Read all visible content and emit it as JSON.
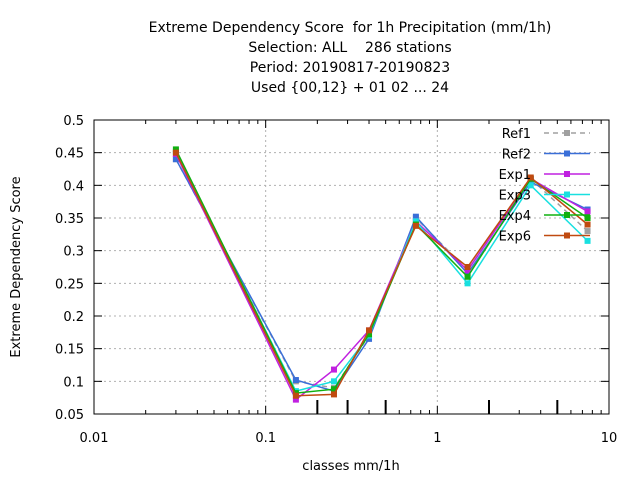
{
  "chart_data": {
    "type": "line",
    "title_lines": [
      "Extreme Dependency Score  for 1h Precipitation (mm/1h)",
      "Selection: ALL    286 stations",
      "Period: 20190817-20190823",
      "Used {00,12} + 01 02 ... 24"
    ],
    "xlabel": "classes mm/1h",
    "ylabel": "Extreme Dependency Score",
    "xscale": "log",
    "xlim": [
      0.01,
      10
    ],
    "ylim": [
      0.05,
      0.5
    ],
    "xticks": [
      0.01,
      0.1,
      1,
      10
    ],
    "xtick_labels": [
      "0.01",
      "0.1",
      "1",
      "10"
    ],
    "yticks": [
      0.05,
      0.1,
      0.15,
      0.2,
      0.25,
      0.3,
      0.35,
      0.4,
      0.45,
      0.5
    ],
    "ytick_labels": [
      "0.05",
      "0.1",
      "0.15",
      "0.2",
      "0.25",
      "0.3",
      "0.35",
      "0.4",
      "0.45",
      "0.5"
    ],
    "grid": true,
    "legend_position": "top-right",
    "class_markers": [
      0.2,
      0.3,
      0.5,
      2,
      5
    ],
    "x": [
      0.03,
      0.15,
      0.25,
      0.4,
      0.75,
      1.5,
      3.5,
      7.5
    ],
    "series": [
      {
        "name": "Ref1",
        "color": "#a0a0a0",
        "dashed": true,
        "values": [
          0.44,
          0.1,
          0.09,
          0.17,
          0.35,
          0.27,
          0.41,
          0.33
        ]
      },
      {
        "name": "Ref2",
        "color": "#3a6fd8",
        "dashed": false,
        "values": [
          0.44,
          0.102,
          0.085,
          0.165,
          0.352,
          0.265,
          0.405,
          0.363
        ]
      },
      {
        "name": "Exp1",
        "color": "#c020e0",
        "dashed": false,
        "values": [
          0.448,
          0.072,
          0.118,
          0.178,
          0.345,
          0.27,
          0.41,
          0.36
        ]
      },
      {
        "name": "Exp3",
        "color": "#18e0e0",
        "dashed": false,
        "values": [
          0.452,
          0.085,
          0.1,
          0.17,
          0.345,
          0.25,
          0.4,
          0.315
        ]
      },
      {
        "name": "Exp4",
        "color": "#10b010",
        "dashed": false,
        "values": [
          0.455,
          0.082,
          0.088,
          0.172,
          0.34,
          0.26,
          0.41,
          0.35
        ]
      },
      {
        "name": "Exp6",
        "color": "#c04a10",
        "dashed": false,
        "values": [
          0.45,
          0.078,
          0.08,
          0.178,
          0.338,
          0.275,
          0.412,
          0.34
        ]
      }
    ]
  }
}
